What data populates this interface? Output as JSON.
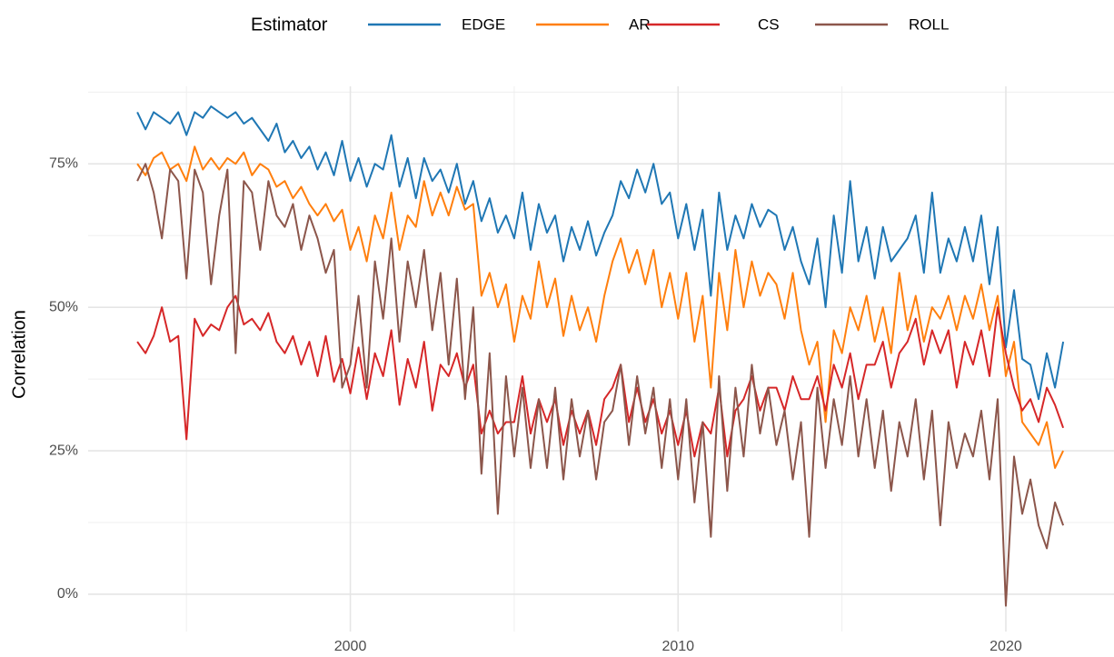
{
  "chart_data": {
    "type": "line",
    "legend_title": "Estimator",
    "y_label": "Correlation",
    "x": [
      1993.5,
      1993.75,
      1994,
      1994.25,
      1994.5,
      1994.75,
      1995,
      1995.25,
      1995.5,
      1995.75,
      1996,
      1996.25,
      1996.5,
      1996.75,
      1997,
      1997.25,
      1997.5,
      1997.75,
      1998,
      1998.25,
      1998.5,
      1998.75,
      1999,
      1999.25,
      1999.5,
      1999.75,
      2000,
      2000.25,
      2000.5,
      2000.75,
      2001,
      2001.25,
      2001.5,
      2001.75,
      2002,
      2002.25,
      2002.5,
      2002.75,
      2003,
      2003.25,
      2003.5,
      2003.75,
      2004,
      2004.25,
      2004.5,
      2004.75,
      2005,
      2005.25,
      2005.5,
      2005.75,
      2006,
      2006.25,
      2006.5,
      2006.75,
      2007,
      2007.25,
      2007.5,
      2007.75,
      2008,
      2008.25,
      2008.5,
      2008.75,
      2009,
      2009.25,
      2009.5,
      2009.75,
      2010,
      2010.25,
      2010.5,
      2010.75,
      2011,
      2011.25,
      2011.5,
      2011.75,
      2012,
      2012.25,
      2012.5,
      2012.75,
      2013,
      2013.25,
      2013.5,
      2013.75,
      2014,
      2014.25,
      2014.5,
      2014.75,
      2015,
      2015.25,
      2015.5,
      2015.75,
      2016,
      2016.25,
      2016.5,
      2016.75,
      2017,
      2017.25,
      2017.5,
      2017.75,
      2018,
      2018.25,
      2018.5,
      2018.75,
      2019,
      2019.25,
      2019.5,
      2019.75,
      2020,
      2020.25,
      2020.5,
      2020.75,
      2021,
      2021.25,
      2021.5,
      2021.75
    ],
    "series": [
      {
        "name": "EDGE",
        "color": "#1f77b4",
        "values": [
          84,
          81,
          84,
          83,
          82,
          84,
          80,
          84,
          83,
          85,
          84,
          83,
          84,
          82,
          83,
          81,
          79,
          82,
          77,
          79,
          76,
          78,
          74,
          77,
          73,
          79,
          72,
          76,
          71,
          75,
          74,
          80,
          71,
          76,
          69,
          76,
          72,
          74,
          70,
          75,
          68,
          72,
          65,
          69,
          63,
          66,
          62,
          70,
          60,
          68,
          63,
          66,
          58,
          64,
          60,
          65,
          59,
          63,
          66,
          72,
          69,
          74,
          70,
          75,
          68,
          70,
          62,
          68,
          60,
          67,
          52,
          70,
          60,
          66,
          62,
          68,
          64,
          67,
          66,
          60,
          64,
          58,
          54,
          62,
          50,
          66,
          56,
          72,
          58,
          64,
          55,
          64,
          58,
          60,
          62,
          66,
          56,
          70,
          56,
          62,
          58,
          64,
          58,
          66,
          54,
          64,
          43,
          53,
          41,
          40,
          34,
          42,
          36,
          44
        ]
      },
      {
        "name": "AR",
        "color": "#ff7f0e",
        "values": [
          75,
          73,
          76,
          77,
          74,
          75,
          72,
          78,
          74,
          76,
          74,
          76,
          75,
          77,
          73,
          75,
          74,
          71,
          72,
          69,
          71,
          68,
          66,
          68,
          65,
          67,
          60,
          64,
          58,
          66,
          62,
          70,
          60,
          66,
          64,
          72,
          66,
          70,
          66,
          71,
          67,
          68,
          52,
          56,
          50,
          54,
          44,
          52,
          48,
          58,
          50,
          55,
          45,
          52,
          46,
          50,
          44,
          52,
          58,
          62,
          56,
          60,
          54,
          60,
          50,
          56,
          48,
          56,
          44,
          52,
          36,
          56,
          46,
          60,
          50,
          58,
          52,
          56,
          54,
          48,
          56,
          46,
          40,
          44,
          30,
          46,
          42,
          50,
          46,
          52,
          44,
          50,
          42,
          56,
          46,
          52,
          44,
          50,
          48,
          52,
          46,
          52,
          48,
          54,
          46,
          52,
          38,
          44,
          30,
          28,
          26,
          30,
          22,
          25
        ]
      },
      {
        "name": "CS",
        "color": "#d62728",
        "values": [
          44,
          42,
          45,
          50,
          44,
          45,
          27,
          48,
          45,
          47,
          46,
          50,
          52,
          47,
          48,
          46,
          49,
          44,
          42,
          45,
          40,
          44,
          38,
          45,
          37,
          41,
          35,
          43,
          34,
          42,
          38,
          46,
          33,
          41,
          36,
          44,
          32,
          40,
          38,
          42,
          36,
          40,
          28,
          32,
          28,
          30,
          30,
          38,
          28,
          34,
          30,
          34,
          26,
          32,
          28,
          32,
          26,
          34,
          36,
          40,
          30,
          36,
          30,
          34,
          28,
          32,
          26,
          32,
          24,
          30,
          28,
          36,
          24,
          32,
          34,
          38,
          32,
          36,
          36,
          32,
          38,
          34,
          34,
          38,
          32,
          40,
          36,
          42,
          34,
          40,
          40,
          44,
          36,
          42,
          44,
          48,
          40,
          46,
          42,
          46,
          36,
          44,
          40,
          46,
          38,
          50,
          42,
          36,
          32,
          34,
          30,
          36,
          33,
          29
        ]
      },
      {
        "name": "ROLL",
        "color": "#8c564b",
        "values": [
          72,
          75,
          70,
          62,
          74,
          72,
          55,
          74,
          70,
          54,
          66,
          74,
          42,
          72,
          70,
          60,
          72,
          66,
          64,
          68,
          60,
          66,
          62,
          56,
          60,
          36,
          40,
          52,
          36,
          58,
          48,
          62,
          44,
          58,
          50,
          60,
          46,
          56,
          40,
          55,
          34,
          50,
          21,
          42,
          14,
          38,
          24,
          36,
          22,
          34,
          22,
          36,
          20,
          34,
          24,
          32,
          20,
          30,
          32,
          40,
          26,
          38,
          28,
          36,
          22,
          34,
          20,
          34,
          16,
          30,
          10,
          38,
          18,
          36,
          24,
          40,
          28,
          36,
          26,
          32,
          20,
          30,
          10,
          36,
          22,
          34,
          26,
          38,
          24,
          34,
          22,
          32,
          18,
          30,
          24,
          34,
          20,
          32,
          12,
          30,
          22,
          28,
          24,
          32,
          20,
          34,
          -2,
          24,
          14,
          20,
          12,
          8,
          16,
          12
        ]
      }
    ],
    "xlim": [
      1992,
      2023.3
    ],
    "xticks": [
      2000,
      2010,
      2020
    ],
    "x_minor_grid": [
      1995,
      2005,
      2015
    ],
    "ylim": [
      -6.5,
      88.5
    ],
    "yticks": [
      {
        "value": 0,
        "label": "0%"
      },
      {
        "value": 25,
        "label": "25%"
      },
      {
        "value": 50,
        "label": "50%"
      },
      {
        "value": 75,
        "label": "75%"
      }
    ],
    "y_minor_grid": [
      12.5,
      37.5,
      62.5,
      87.5
    ],
    "legend": "top"
  }
}
